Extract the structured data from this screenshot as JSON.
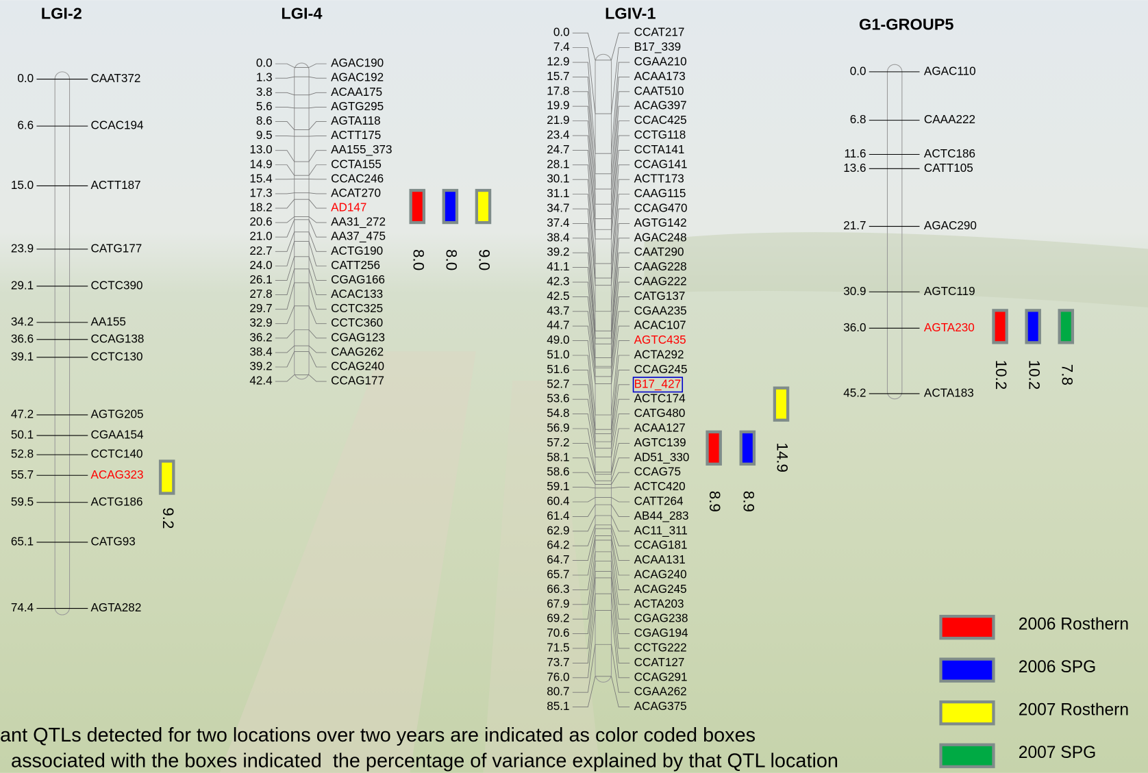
{
  "groups": [
    {
      "title": "LGI-2",
      "markers": [
        {
          "pos": "0.0",
          "name": "CAAT372"
        },
        {
          "pos": "6.6",
          "name": "CCAC194"
        },
        {
          "pos": "15.0",
          "name": "ACTT187"
        },
        {
          "pos": "23.9",
          "name": "CATG177"
        },
        {
          "pos": "29.1",
          "name": "CCTC390"
        },
        {
          "pos": "34.2",
          "name": "AA155"
        },
        {
          "pos": "36.6",
          "name": "CCAG138"
        },
        {
          "pos": "39.1",
          "name": "CCTC130"
        },
        {
          "pos": "47.2",
          "name": "AGTG205"
        },
        {
          "pos": "50.1",
          "name": "CGAA154"
        },
        {
          "pos": "52.8",
          "name": "CCTC140"
        },
        {
          "pos": "55.7",
          "name": "ACAG323",
          "color": "#ff0000"
        },
        {
          "pos": "59.5",
          "name": "ACTG186"
        },
        {
          "pos": "65.1",
          "name": "CATG93"
        },
        {
          "pos": "74.4",
          "name": "AGTA282"
        }
      ],
      "qtls": [
        {
          "color": "#ffff00",
          "label": "9.2"
        }
      ]
    },
    {
      "title": "LGI-4",
      "markers": [
        {
          "pos": "0.0",
          "name": "AGAC190"
        },
        {
          "pos": "1.3",
          "name": "AGAC192"
        },
        {
          "pos": "3.8",
          "name": "ACAA175"
        },
        {
          "pos": "5.6",
          "name": "AGTG295"
        },
        {
          "pos": "8.6",
          "name": "AGTA118"
        },
        {
          "pos": "9.5",
          "name": "ACTT175"
        },
        {
          "pos": "13.0",
          "name": "AA155_373"
        },
        {
          "pos": "14.9",
          "name": "CCTA155"
        },
        {
          "pos": "15.4",
          "name": "CCAC246"
        },
        {
          "pos": "17.3",
          "name": "ACAT270"
        },
        {
          "pos": "18.2",
          "name": "AD147",
          "color": "#ff0000"
        },
        {
          "pos": "20.6",
          "name": "AA31_272"
        },
        {
          "pos": "21.0",
          "name": "AA37_475"
        },
        {
          "pos": "22.7",
          "name": "ACTG190"
        },
        {
          "pos": "24.0",
          "name": "CATT256"
        },
        {
          "pos": "26.1",
          "name": "CGAG166"
        },
        {
          "pos": "27.8",
          "name": "ACAC133"
        },
        {
          "pos": "29.7",
          "name": "CCTC325"
        },
        {
          "pos": "32.9",
          "name": "CCTC360"
        },
        {
          "pos": "36.2",
          "name": "CGAG123"
        },
        {
          "pos": "38.4",
          "name": "CAAG262"
        },
        {
          "pos": "39.2",
          "name": "CCAG240"
        },
        {
          "pos": "42.4",
          "name": "CCAG177"
        }
      ],
      "qtls": [
        {
          "color": "#ff0000",
          "label": "8.0"
        },
        {
          "color": "#0000ff",
          "label": "8.0"
        },
        {
          "color": "#ffff00",
          "label": "9.0"
        }
      ]
    },
    {
      "title": "LGIV-1",
      "markers": [
        {
          "pos": "0.0",
          "name": "CCAT217"
        },
        {
          "pos": "7.4",
          "name": "B17_339"
        },
        {
          "pos": "12.9",
          "name": "CGAA210"
        },
        {
          "pos": "15.7",
          "name": "ACAA173"
        },
        {
          "pos": "17.8",
          "name": "CAAT510"
        },
        {
          "pos": "19.9",
          "name": "ACAG397"
        },
        {
          "pos": "21.9",
          "name": "CCAC425"
        },
        {
          "pos": "23.4",
          "name": "CCTG118"
        },
        {
          "pos": "24.7",
          "name": "CCTA141"
        },
        {
          "pos": "28.1",
          "name": "CCAG141"
        },
        {
          "pos": "30.1",
          "name": "ACTT173"
        },
        {
          "pos": "31.1",
          "name": "CAAG115"
        },
        {
          "pos": "34.7",
          "name": "CCAG470"
        },
        {
          "pos": "37.4",
          "name": "AGTG142"
        },
        {
          "pos": "38.4",
          "name": "AGAC248"
        },
        {
          "pos": "39.2",
          "name": "CAAT290"
        },
        {
          "pos": "41.1",
          "name": "CAAG228"
        },
        {
          "pos": "42.3",
          "name": "CAAG222"
        },
        {
          "pos": "42.5",
          "name": "CATG137"
        },
        {
          "pos": "43.7",
          "name": "CGAA235"
        },
        {
          "pos": "44.7",
          "name": "ACAC107"
        },
        {
          "pos": "49.0",
          "name": "AGTC435",
          "color": "#ff0000"
        },
        {
          "pos": "51.0",
          "name": "ACTA292"
        },
        {
          "pos": "51.6",
          "name": "CCAG245"
        },
        {
          "pos": "52.7",
          "name": "B17_427",
          "color": "#ff0000",
          "box_color": "#0000cc"
        },
        {
          "pos": "53.6",
          "name": "ACTC174"
        },
        {
          "pos": "54.8",
          "name": "CATG480"
        },
        {
          "pos": "56.9",
          "name": "ACAA127"
        },
        {
          "pos": "57.2",
          "name": "AGTC139"
        },
        {
          "pos": "58.1",
          "name": "AD51_330"
        },
        {
          "pos": "58.6",
          "name": "CCAG75"
        },
        {
          "pos": "59.1",
          "name": "ACTC420"
        },
        {
          "pos": "60.4",
          "name": "CATT264"
        },
        {
          "pos": "61.4",
          "name": "AB44_283"
        },
        {
          "pos": "62.9",
          "name": "AC11_311"
        },
        {
          "pos": "64.2",
          "name": "CCAG181"
        },
        {
          "pos": "64.7",
          "name": "ACAA131"
        },
        {
          "pos": "65.7",
          "name": "ACAG240"
        },
        {
          "pos": "66.3",
          "name": "ACAG245"
        },
        {
          "pos": "67.9",
          "name": "ACTA203"
        },
        {
          "pos": "69.2",
          "name": "CGAG238"
        },
        {
          "pos": "70.6",
          "name": "CGAG194"
        },
        {
          "pos": "71.5",
          "name": "CCTG222"
        },
        {
          "pos": "73.7",
          "name": "CCAT127"
        },
        {
          "pos": "76.0",
          "name": "CCAG291"
        },
        {
          "pos": "80.7",
          "name": "CGAA262"
        },
        {
          "pos": "85.1",
          "name": "ACAG375"
        }
      ],
      "qtls": [
        {
          "color": "#ff0000",
          "label": "8.9"
        },
        {
          "color": "#0000ff",
          "label": "8.9"
        },
        {
          "color": "#ffff00",
          "label": "14.9"
        }
      ]
    },
    {
      "title": "G1-GROUP5",
      "markers": [
        {
          "pos": "0.0",
          "name": "AGAC110"
        },
        {
          "pos": "6.8",
          "name": "CAAA222"
        },
        {
          "pos": "11.6",
          "name": "ACTC186"
        },
        {
          "pos": "13.6",
          "name": "CATT105"
        },
        {
          "pos": "21.7",
          "name": "AGAC290"
        },
        {
          "pos": "30.9",
          "name": "AGTC119"
        },
        {
          "pos": "36.0",
          "name": "AGTA230",
          "color": "#ff0000"
        },
        {
          "pos": "45.2",
          "name": "ACTA183"
        }
      ],
      "qtls": [
        {
          "color": "#ff0000",
          "label": "10.2"
        },
        {
          "color": "#0000ff",
          "label": "10.2"
        },
        {
          "color": "#00aa44",
          "label": "7.8"
        }
      ]
    }
  ],
  "legend": [
    {
      "label": "2006 Rosthern",
      "color": "#ff0000"
    },
    {
      "label": "2006 SPG",
      "color": "#0000ff"
    },
    {
      "label": "2007 Rosthern",
      "color": "#ffff00"
    },
    {
      "label": "2007 SPG",
      "color": "#00aa44"
    }
  ],
  "footer": [
    "ant QTLs detected for two locations over two years are indicated as color coded boxes",
    "  associated with the boxes indicated  the percentage of variance explained by that QTL location"
  ]
}
